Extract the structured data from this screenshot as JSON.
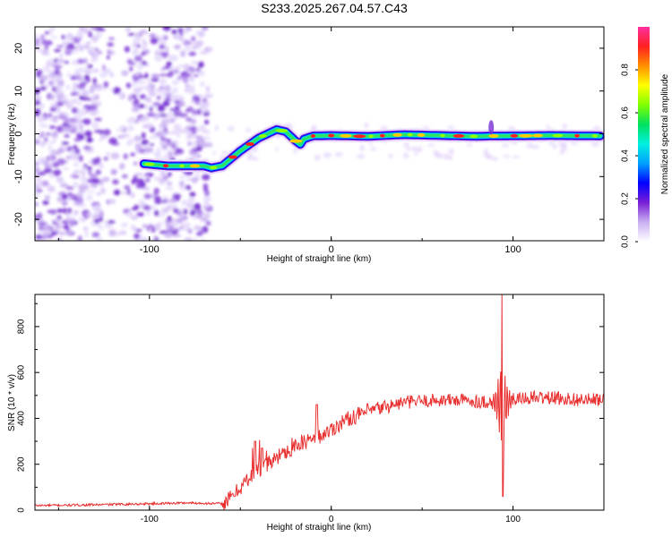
{
  "title": "S233.2025.267.04.57.C43",
  "chart_data": [
    {
      "type": "heatmap",
      "xlabel": "Height of straight line (km)",
      "ylabel": "Frequency (Hz)",
      "xlim": [
        -163,
        150
      ],
      "ylim": [
        -25,
        25
      ],
      "xticks": [
        -100,
        0,
        100
      ],
      "yticks": [
        -20,
        -10,
        0,
        10,
        20
      ],
      "colorbar": {
        "label": "Normalized spectral amplitude",
        "range": [
          0,
          1
        ],
        "ticks": [
          0.0,
          0.2,
          0.4,
          0.6,
          0.8
        ],
        "colors": [
          "#ffffff",
          "#c9b0f2",
          "#7a1fd6",
          "#0000ff",
          "#00a0ff",
          "#00f0e0",
          "#00e060",
          "#80ff00",
          "#ffff00",
          "#ff9000",
          "#ff2020",
          "#ff30a0"
        ]
      },
      "noise_region_km": [
        -163,
        -67
      ],
      "ridge": {
        "x": [
          -103,
          -90,
          -80,
          -70,
          -66,
          -60,
          -50,
          -40,
          -30,
          -25,
          -20,
          -17,
          -15,
          -10,
          0,
          20,
          40,
          60,
          80,
          88,
          95,
          120,
          148
        ],
        "y": [
          -7,
          -7.5,
          -7.5,
          -7.5,
          -8,
          -7.5,
          -4,
          -1,
          1,
          0.5,
          -1.5,
          -2.5,
          -1.2,
          -0.5,
          -0.4,
          -0.6,
          -0.2,
          -0.4,
          -0.6,
          -0.5,
          -0.5,
          -0.4,
          -0.5
        ]
      }
    },
    {
      "type": "line",
      "xlabel": "Height of straight line (km)",
      "ylabel": "SNR (10 * v/v)",
      "xlim": [
        -163,
        150
      ],
      "ylim": [
        0,
        940
      ],
      "xticks": [
        -100,
        0,
        100
      ],
      "yticks": [
        0,
        200,
        400,
        600,
        800
      ],
      "series": [
        {
          "name": "SNR",
          "color": "#e83030",
          "x": [
            -163,
            -140,
            -120,
            -100,
            -90,
            -80,
            -70,
            -60,
            -55,
            -50,
            -45,
            -40,
            -35,
            -30,
            -25,
            -20,
            -15,
            -10,
            -5,
            0,
            5,
            10,
            20,
            30,
            40,
            50,
            60,
            70,
            80,
            90,
            95,
            100,
            110,
            120,
            130,
            140,
            150
          ],
          "y": [
            20,
            22,
            25,
            28,
            30,
            32,
            30,
            28,
            55,
            100,
            140,
            170,
            200,
            230,
            255,
            280,
            295,
            310,
            330,
            350,
            380,
            400,
            430,
            450,
            470,
            475,
            480,
            480,
            475,
            470,
            465,
            480,
            490,
            490,
            485,
            480,
            480
          ]
        }
      ],
      "spike": {
        "x": 94,
        "max": 940,
        "min": 60
      }
    }
  ]
}
